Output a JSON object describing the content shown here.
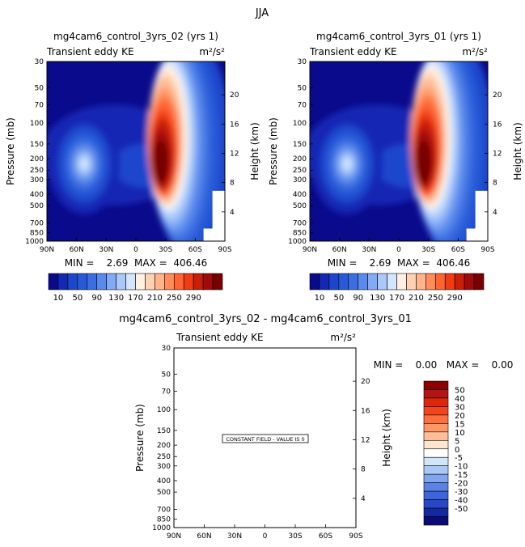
{
  "chart_data": [
    {
      "type": "heatmap",
      "title": "mg4cam6_control_3yrs_02 (yrs 1)",
      "subtitle_left": "Transient eddy KE",
      "subtitle_right": "m²/s²",
      "xlabel": "",
      "ylabel": "Pressure (mb)",
      "y2label": "Height (km)",
      "x_ticks": [
        "90N",
        "60N",
        "30N",
        "0",
        "30S",
        "60S",
        "90S"
      ],
      "y_ticks": [
        "30",
        "50",
        "70",
        "100",
        "150",
        "200",
        "250",
        "300",
        "400",
        "500",
        "700",
        "850",
        "1000"
      ],
      "y2_ticks": [
        "20",
        "16",
        "12",
        "8",
        "4"
      ],
      "stats_text": "MIN =    2.69  MAX =  406.46",
      "min": 2.69,
      "max": 406.46,
      "colorbar_labels": [
        "10",
        "50",
        "90",
        "130",
        "170",
        "210",
        "250",
        "290"
      ]
    },
    {
      "type": "heatmap",
      "title": "mg4cam6_control_3yrs_01 (yrs 1)",
      "subtitle_left": "Transient eddy KE",
      "subtitle_right": "m²/s²",
      "xlabel": "",
      "ylabel": "Pressure (mb)",
      "y2label": "Height (km)",
      "x_ticks": [
        "90N",
        "60N",
        "30N",
        "0",
        "30S",
        "60S",
        "90S"
      ],
      "y_ticks": [
        "30",
        "50",
        "70",
        "100",
        "150",
        "200",
        "250",
        "300",
        "400",
        "500",
        "700",
        "850",
        "1000"
      ],
      "y2_ticks": [
        "20",
        "16",
        "12",
        "8",
        "4"
      ],
      "stats_text": "MIN =    2.69  MAX =  406.46",
      "min": 2.69,
      "max": 406.46,
      "colorbar_labels": [
        "10",
        "50",
        "90",
        "130",
        "170",
        "210",
        "250",
        "290"
      ]
    },
    {
      "type": "heatmap",
      "title": "mg4cam6_control_3yrs_02 - mg4cam6_control_3yrs_01",
      "subtitle_left": "Transient eddy KE",
      "subtitle_right": "m²/s²",
      "xlabel": "",
      "ylabel": "Pressure (mb)",
      "y2label": "Height (km)",
      "x_ticks": [
        "90N",
        "60N",
        "30N",
        "0",
        "30S",
        "60S",
        "90S"
      ],
      "y_ticks": [
        "30",
        "50",
        "70",
        "100",
        "150",
        "200",
        "250",
        "300",
        "400",
        "500",
        "700",
        "850",
        "1000"
      ],
      "y2_ticks": [
        "20",
        "16",
        "12",
        "8",
        "4"
      ],
      "stats_text": "MIN =    0.00   MAX =    0.00",
      "min": 0.0,
      "max": 0.0,
      "annotation": "CONSTANT FIELD - VALUE IS 0",
      "colorbar_labels": [
        "50",
        "40",
        "30",
        "20",
        "15",
        "10",
        "5",
        "0",
        "-5",
        "-10",
        "-15",
        "-20",
        "-30",
        "-40",
        "-50"
      ]
    }
  ],
  "page_title": "JJA",
  "colors": {
    "palette_abs": [
      "#0a0a8c",
      "#1428b4",
      "#1e46cd",
      "#285ad7",
      "#3c6ee1",
      "#5a8aeb",
      "#82aaf5",
      "#aac8fa",
      "#d2e6ff",
      "#fff0e1",
      "#ffd2b4",
      "#ffb48c",
      "#ff8c5a",
      "#ff6432",
      "#f03c14",
      "#c81e0a",
      "#a00a0a",
      "#780000"
    ],
    "palette_diff": [
      "#8c0000",
      "#b41414",
      "#dc280a",
      "#f0461e",
      "#ff6e3c",
      "#ff9664",
      "#ffbe96",
      "#ffe6d2",
      "#ffffff",
      "#d2e6fa",
      "#aac8f5",
      "#82a5f0",
      "#5a82e6",
      "#3c64dc",
      "#2846c8",
      "#1428a0",
      "#0a0a78"
    ]
  }
}
